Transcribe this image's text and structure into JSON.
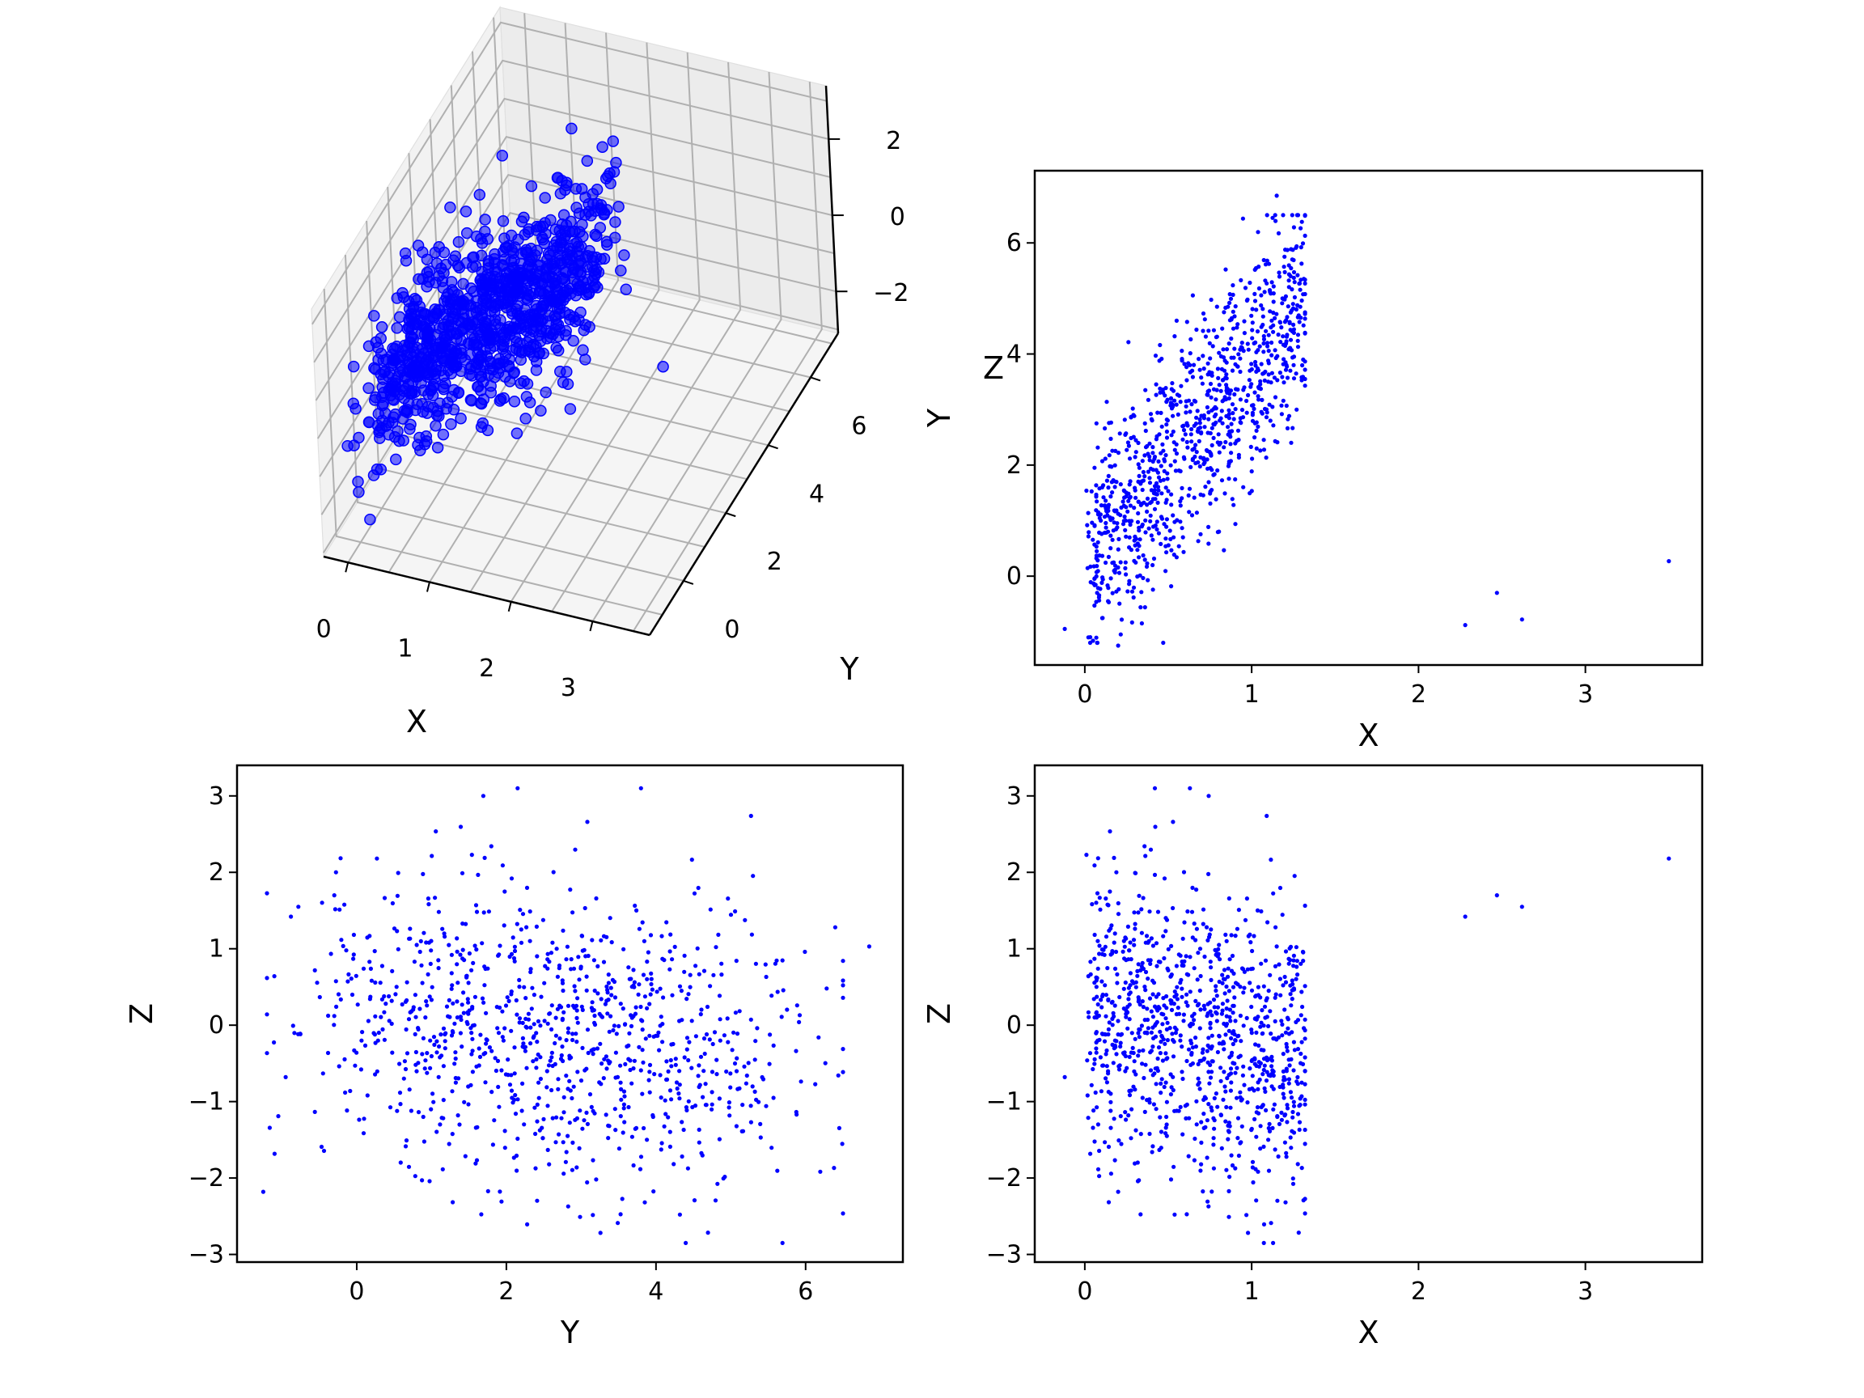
{
  "chart_data": [
    {
      "type": "scatter3d",
      "xlabel": "X",
      "ylabel": "Y",
      "zlabel": "Z",
      "xticks": [
        0,
        1,
        2,
        3
      ],
      "xtick_labels": [
        "0",
        "1",
        "2",
        "3"
      ],
      "yticks": [
        0,
        2,
        4,
        6
      ],
      "ytick_labels": [
        "0",
        "2",
        "4",
        "6"
      ],
      "zticks": [
        -2,
        0,
        2
      ],
      "ztick_labels": [
        "−2",
        "0",
        "2"
      ],
      "color": "#0000ff",
      "note_points": "same 1000 points as the 2D panels"
    },
    {
      "type": "scatter",
      "x_var": "X",
      "y_var": "Y",
      "xlabel": "X",
      "ylabel": "Y",
      "xlim": [
        -0.3,
        3.7
      ],
      "ylim": [
        -1.6,
        7.3
      ],
      "xticks": [
        0,
        1,
        2,
        3
      ],
      "xtick_labels": [
        "0",
        "1",
        "2",
        "3"
      ],
      "yticks": [
        0,
        2,
        4,
        6
      ],
      "ytick_labels": [
        "0",
        "2",
        "4",
        "6"
      ],
      "color": "#0000ff"
    },
    {
      "type": "scatter",
      "x_var": "Y",
      "y_var": "Z",
      "xlabel": "Y",
      "ylabel": "Z",
      "xlim": [
        -1.6,
        7.3
      ],
      "ylim": [
        -3.1,
        3.4
      ],
      "xticks": [
        0,
        2,
        4,
        6
      ],
      "xtick_labels": [
        "0",
        "2",
        "4",
        "6"
      ],
      "yticks": [
        -3,
        -2,
        -1,
        0,
        1,
        2,
        3
      ],
      "ytick_labels": [
        "−3",
        "−2",
        "−1",
        "0",
        "1",
        "2",
        "3"
      ],
      "color": "#0000ff"
    },
    {
      "type": "scatter",
      "x_var": "X",
      "y_var": "Z",
      "xlabel": "X",
      "ylabel": "Z",
      "xlim": [
        -0.3,
        3.7
      ],
      "ylim": [
        -3.1,
        3.4
      ],
      "xticks": [
        0,
        1,
        2,
        3
      ],
      "xtick_labels": [
        "0",
        "1",
        "2",
        "3"
      ],
      "yticks": [
        -3,
        -2,
        -1,
        0,
        1,
        2,
        3
      ],
      "ytick_labels": [
        "−3",
        "−2",
        "−1",
        "0",
        "1",
        "2",
        "3"
      ],
      "color": "#0000ff"
    }
  ],
  "points": {
    "count": 1000,
    "distribution": {
      "X": "uniform-ish in [0, 1.3] (0.0 to 1.3)",
      "Y": "approx 3.5*X + N(0, 1.0) + 0.3",
      "Z": "approx N(0, 1.0) - 0.6*X"
    },
    "outliers": [
      {
        "x": 2.28,
        "y": -0.88,
        "z": 1.42
      },
      {
        "x": 2.47,
        "y": -0.3,
        "z": 1.7
      },
      {
        "x": 2.62,
        "y": -0.78,
        "z": 1.55
      },
      {
        "x": 3.5,
        "y": 0.27,
        "z": 2.18
      },
      {
        "x": 1.15,
        "y": 6.85,
        "z": 1.03
      },
      {
        "x": 0.2,
        "y": -1.25,
        "z": -2.18
      },
      {
        "x": -0.12,
        "y": -0.95,
        "z": -0.68
      },
      {
        "x": 0.42,
        "y": 2.15,
        "z": 3.1
      },
      {
        "x": 0.63,
        "y": 3.8,
        "z": 3.1
      }
    ]
  }
}
